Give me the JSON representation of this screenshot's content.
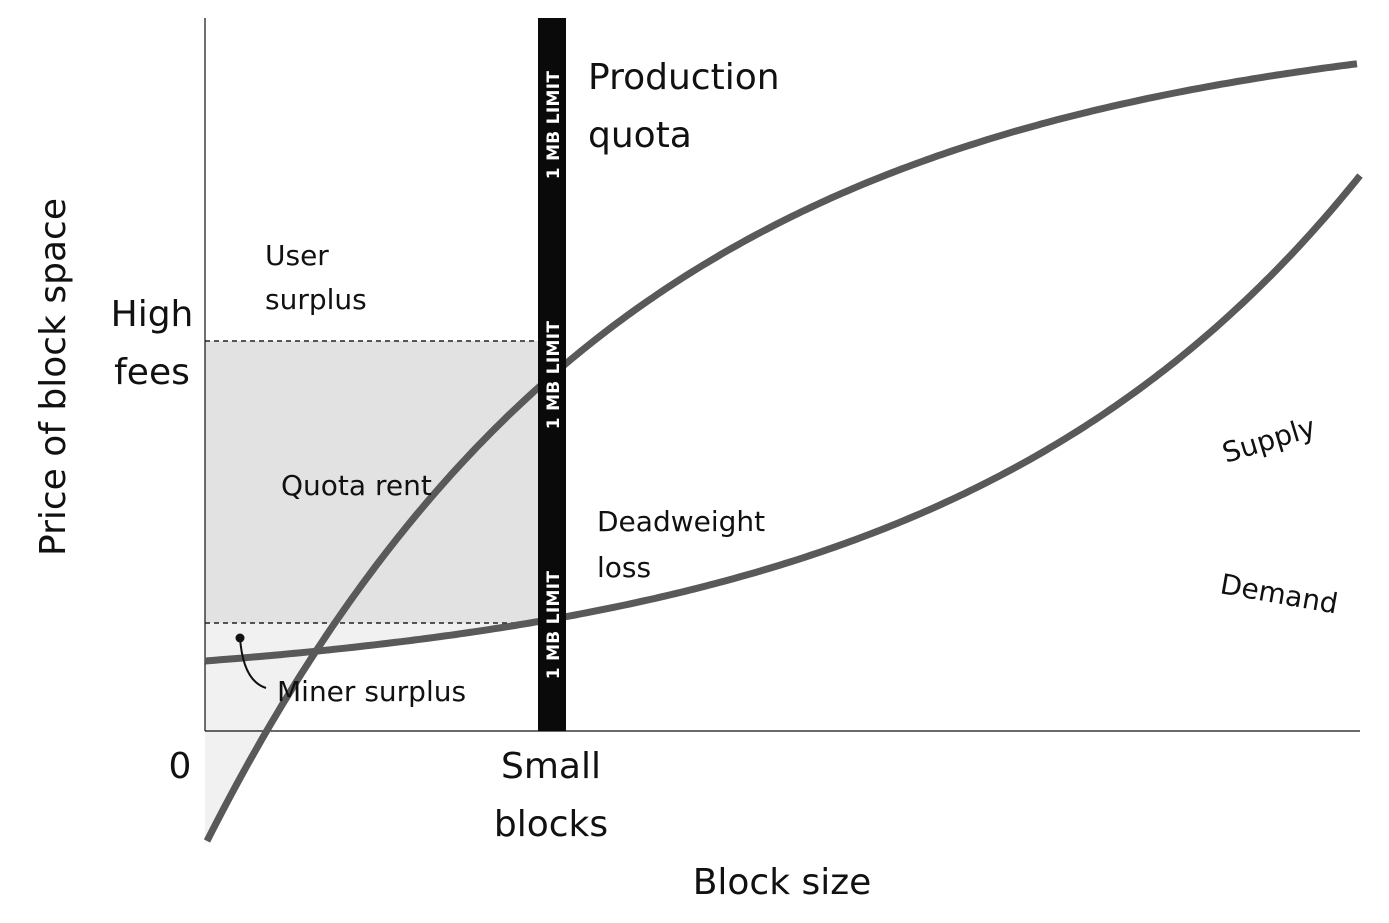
{
  "chart_data": {
    "type": "line",
    "xlabel": "Block size",
    "ylabel": "Price of block space",
    "x_ticks": [
      {
        "lines": [
          "0"
        ]
      },
      {
        "lines": [
          "Small",
          "blocks"
        ]
      }
    ],
    "y_ticks": [
      {
        "lines": [
          "High",
          "fees"
        ]
      }
    ],
    "series": [
      {
        "name": "Demand"
      },
      {
        "name": "Supply"
      }
    ],
    "quota": {
      "label_lines": [
        "Production",
        "quota"
      ],
      "bar_text": "1 MB LIMIT"
    },
    "regions": [
      {
        "lines": [
          "User",
          "surplus"
        ]
      },
      {
        "lines": [
          "Quota rent"
        ]
      },
      {
        "lines": [
          "Deadweight",
          "loss"
        ]
      },
      {
        "lines": [
          "Miner surplus"
        ]
      }
    ]
  }
}
